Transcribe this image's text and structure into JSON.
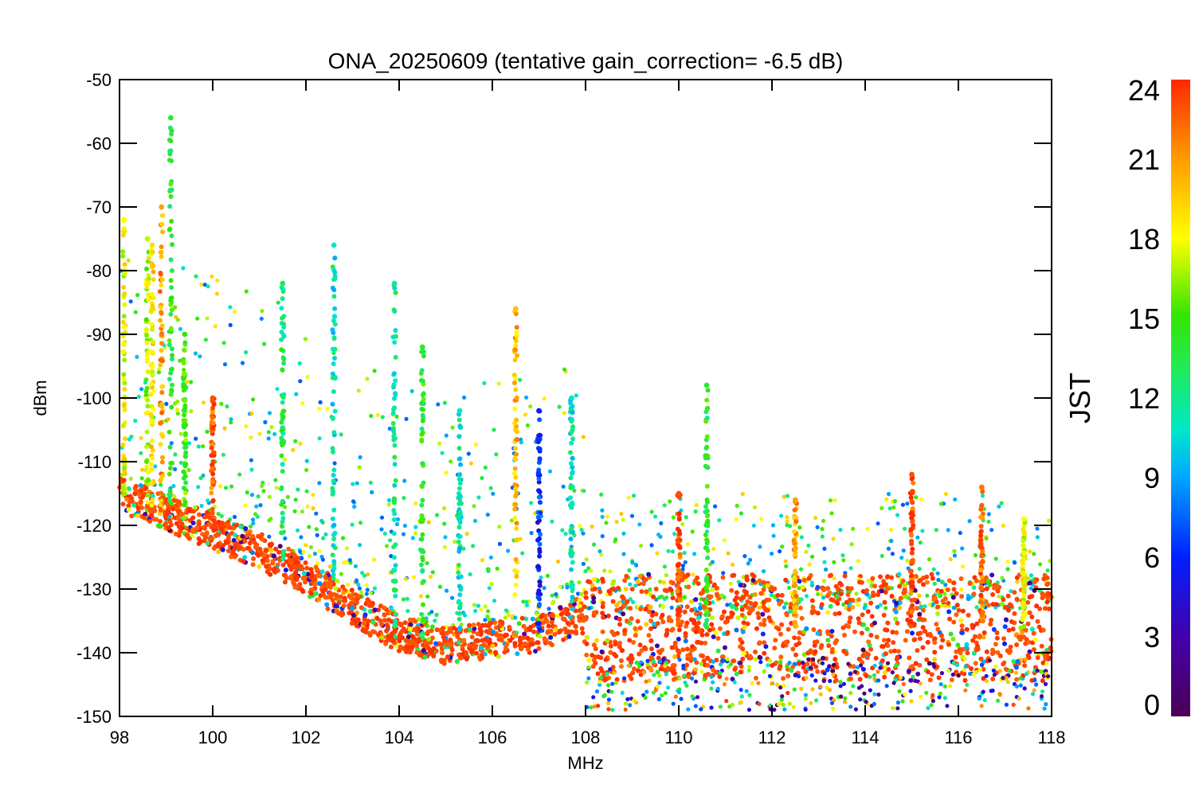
{
  "chart_data": {
    "type": "scatter",
    "title": "ONA_20250609 (tentative gain_correction= -6.5 dB)",
    "xlabel": "MHz",
    "ylabel": "dBm",
    "xlim": [
      98,
      118
    ],
    "ylim": [
      -150,
      -50
    ],
    "xticks": [
      "98",
      "100",
      "102",
      "104",
      "106",
      "108",
      "110",
      "112",
      "114",
      "116",
      "118"
    ],
    "yticks": [
      "-50",
      "-60",
      "-70",
      "-80",
      "-90",
      "-100",
      "-110",
      "-120",
      "-130",
      "-140",
      "-150"
    ],
    "grid": false,
    "color_by": "time of day",
    "colorbar": {
      "label": "JST",
      "range": [
        0,
        24
      ],
      "ticks": [
        "24",
        "21",
        "18",
        "15",
        "12",
        "9",
        "6",
        "3",
        "0"
      ],
      "colormap": "rainbow (purple-blue-cyan-green-yellow-orange-red)"
    },
    "noise_floor_dBm": [
      [
        98.0,
        -115
      ],
      [
        99.0,
        -118
      ],
      [
        100.0,
        -121
      ],
      [
        101.0,
        -124
      ],
      [
        102.0,
        -128
      ],
      [
        103.0,
        -133
      ],
      [
        104.0,
        -137
      ],
      [
        105.0,
        -139
      ],
      [
        106.0,
        -138
      ],
      [
        107.0,
        -137
      ],
      [
        107.9,
        -134
      ],
      [
        108.0,
        -136
      ],
      [
        110.0,
        -136
      ],
      [
        112.0,
        -136
      ],
      [
        114.0,
        -136
      ],
      [
        116.0,
        -136
      ],
      [
        118.0,
        -136
      ]
    ],
    "peaks": [
      {
        "f": 98.1,
        "max_dBm": -72,
        "hour": 18
      },
      {
        "f": 98.6,
        "max_dBm": -75,
        "hour": 17
      },
      {
        "f": 98.7,
        "max_dBm": -76,
        "hour": 19
      },
      {
        "f": 98.9,
        "max_dBm": -70,
        "hour": 21
      },
      {
        "f": 99.1,
        "max_dBm": -56,
        "hour": 14
      },
      {
        "f": 99.4,
        "max_dBm": -90,
        "hour": 15
      },
      {
        "f": 100.0,
        "max_dBm": -100,
        "hour": 23
      },
      {
        "f": 101.5,
        "max_dBm": -82,
        "hour": 13
      },
      {
        "f": 102.6,
        "max_dBm": -76,
        "hour": 11
      },
      {
        "f": 103.9,
        "max_dBm": -82,
        "hour": 12
      },
      {
        "f": 104.5,
        "max_dBm": -92,
        "hour": 14
      },
      {
        "f": 105.3,
        "max_dBm": -102,
        "hour": 11
      },
      {
        "f": 106.5,
        "max_dBm": -86,
        "hour": 20
      },
      {
        "f": 107.0,
        "max_dBm": -102,
        "hour": 6
      },
      {
        "f": 107.7,
        "max_dBm": -100,
        "hour": 11
      },
      {
        "f": 110.0,
        "max_dBm": -115,
        "hour": 23
      },
      {
        "f": 110.6,
        "max_dBm": -98,
        "hour": 14
      },
      {
        "f": 112.5,
        "max_dBm": -116,
        "hour": 21
      },
      {
        "f": 115.0,
        "max_dBm": -112,
        "hour": 23
      },
      {
        "f": 116.5,
        "max_dBm": -114,
        "hour": 22
      },
      {
        "f": 117.4,
        "max_dBm": -119,
        "hour": 18
      }
    ]
  }
}
